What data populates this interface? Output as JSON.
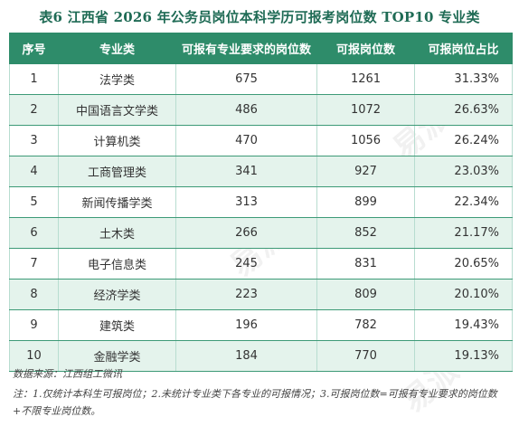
{
  "title": "表6  江西省 2026 年公务员岗位本科学历可报考岗位数 TOP10 专业类",
  "table": {
    "headers": [
      "序号",
      "专业类",
      "可报有专业要求的岗位数",
      "可报岗位数",
      "可报岗位占比"
    ],
    "rows": [
      {
        "rank": "1",
        "category": "法学类",
        "req_posts": "675",
        "posts": "1261",
        "share": "31.33%"
      },
      {
        "rank": "2",
        "category": "中国语言文学类",
        "req_posts": "486",
        "posts": "1072",
        "share": "26.63%"
      },
      {
        "rank": "3",
        "category": "计算机类",
        "req_posts": "470",
        "posts": "1056",
        "share": "26.24%"
      },
      {
        "rank": "4",
        "category": "工商管理类",
        "req_posts": "341",
        "posts": "927",
        "share": "23.03%"
      },
      {
        "rank": "5",
        "category": "新闻传播学类",
        "req_posts": "313",
        "posts": "899",
        "share": "22.34%"
      },
      {
        "rank": "6",
        "category": "土木类",
        "req_posts": "266",
        "posts": "852",
        "share": "21.17%"
      },
      {
        "rank": "7",
        "category": "电子信息类",
        "req_posts": "245",
        "posts": "831",
        "share": "20.65%"
      },
      {
        "rank": "8",
        "category": "经济学类",
        "req_posts": "223",
        "posts": "809",
        "share": "20.10%"
      },
      {
        "rank": "9",
        "category": "建筑类",
        "req_posts": "196",
        "posts": "782",
        "share": "19.43%"
      },
      {
        "rank": "10",
        "category": "金融学类",
        "req_posts": "184",
        "posts": "770",
        "share": "19.13%"
      }
    ]
  },
  "source": "数据来源：江西组工微讯",
  "notes": "注：1.仅统计本科生可报岗位；2.未统计专业类下各专业的可报情况；3.可报岗位数=可报有专业要求的岗位数+不限专业岗位数。",
  "watermark": "易派"
}
